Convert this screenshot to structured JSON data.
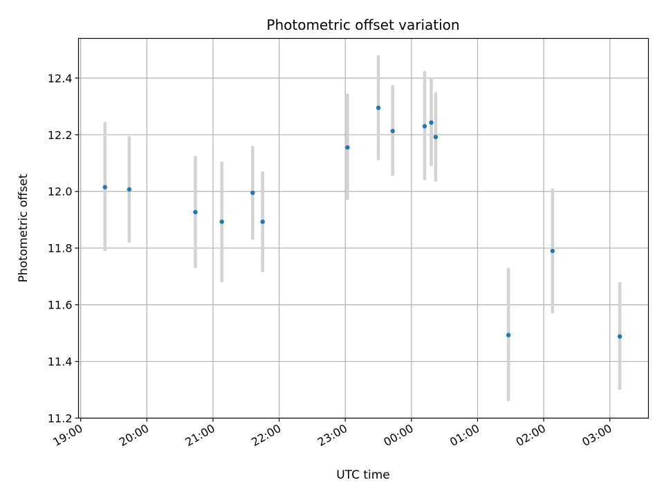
{
  "chart_data": {
    "type": "scatter",
    "title": "Photometric offset variation",
    "xlabel": "UTC time",
    "ylabel": "Photometric offset",
    "grid": true,
    "ylim": [
      11.2,
      12.54
    ],
    "xlim": [
      "18:58",
      "03:35"
    ],
    "xticks": [
      "19:00",
      "20:00",
      "21:00",
      "22:00",
      "23:00",
      "00:00",
      "01:00",
      "02:00",
      "03:00"
    ],
    "yticks": [
      "11.2",
      "11.4",
      "11.6",
      "11.8",
      "12.0",
      "12.2",
      "12.4"
    ],
    "points": [
      {
        "x": "19:22",
        "y": 12.015,
        "err_low": 11.79,
        "err_high": 12.245
      },
      {
        "x": "19:44",
        "y": 12.007,
        "err_low": 11.82,
        "err_high": 12.195
      },
      {
        "x": "20:44",
        "y": 11.927,
        "err_low": 11.73,
        "err_high": 12.125
      },
      {
        "x": "21:08",
        "y": 11.893,
        "err_low": 11.68,
        "err_high": 12.105
      },
      {
        "x": "21:36",
        "y": 11.995,
        "err_low": 11.83,
        "err_high": 12.16
      },
      {
        "x": "21:45",
        "y": 11.893,
        "err_low": 11.715,
        "err_high": 12.07
      },
      {
        "x": "23:02",
        "y": 12.155,
        "err_low": 11.97,
        "err_high": 12.345
      },
      {
        "x": "23:30",
        "y": 12.295,
        "err_low": 12.11,
        "err_high": 12.48
      },
      {
        "x": "23:43",
        "y": 12.213,
        "err_low": 12.055,
        "err_high": 12.375
      },
      {
        "x": "00:12",
        "y": 12.23,
        "err_low": 12.04,
        "err_high": 12.425
      },
      {
        "x": "00:18",
        "y": 12.243,
        "err_low": 12.09,
        "err_high": 12.4
      },
      {
        "x": "00:22",
        "y": 12.192,
        "err_low": 12.035,
        "err_high": 12.35
      },
      {
        "x": "01:28",
        "y": 11.493,
        "err_low": 11.26,
        "err_high": 11.73
      },
      {
        "x": "02:08",
        "y": 11.79,
        "err_low": 11.57,
        "err_high": 12.01
      },
      {
        "x": "03:09",
        "y": 11.488,
        "err_low": 11.3,
        "err_high": 11.68
      }
    ],
    "colors": {
      "marker": "#1f77b4",
      "errorbar": "#d3d3d3",
      "grid": "#b0b0b0",
      "axes": "#000000"
    }
  }
}
